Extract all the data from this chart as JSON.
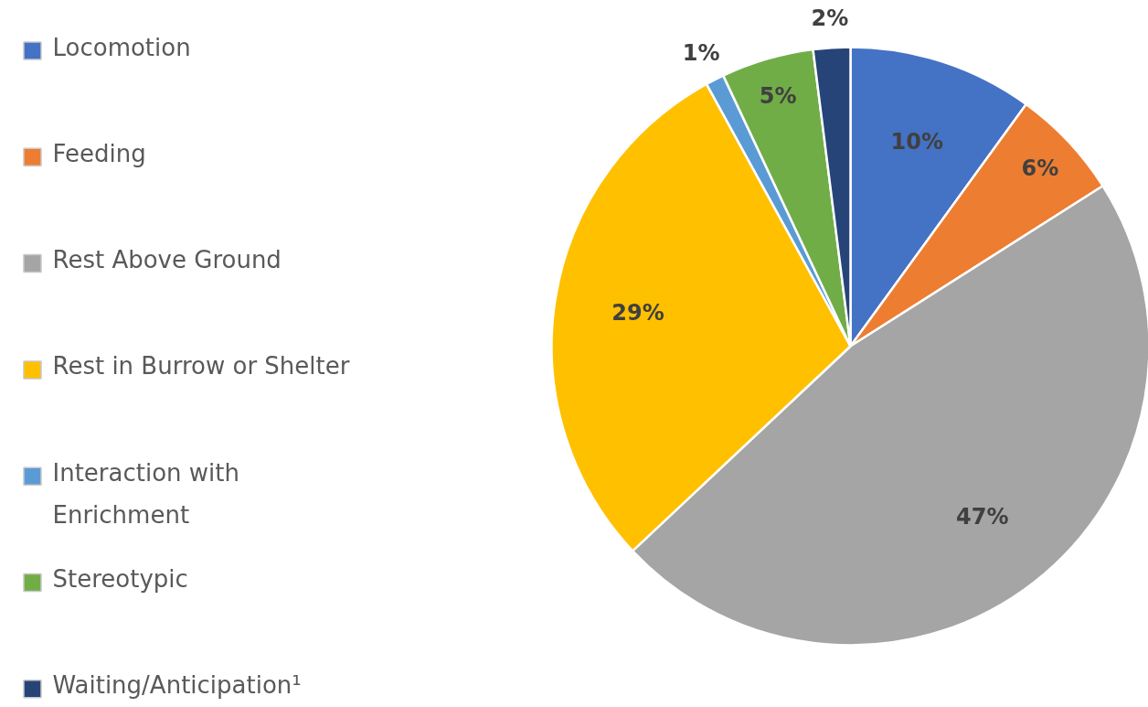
{
  "chart_data": {
    "type": "pie",
    "categories": [
      "Locomotion",
      "Feeding",
      "Rest Above Ground",
      "Rest in Burrow or Shelter",
      "Interaction with Enrichment",
      "Stereotypic",
      "Waiting/Anticipation¹"
    ],
    "values": [
      10,
      6,
      47,
      29,
      1,
      5,
      2
    ],
    "value_labels": [
      "10%",
      "6%",
      "47%",
      "29%",
      "1%",
      "5%",
      "2%"
    ],
    "colors": [
      "#4472c4",
      "#ed7d31",
      "#a5a5a5",
      "#ffc000",
      "#5b9bd5",
      "#70ad47",
      "#264478"
    ],
    "legend": "left"
  }
}
